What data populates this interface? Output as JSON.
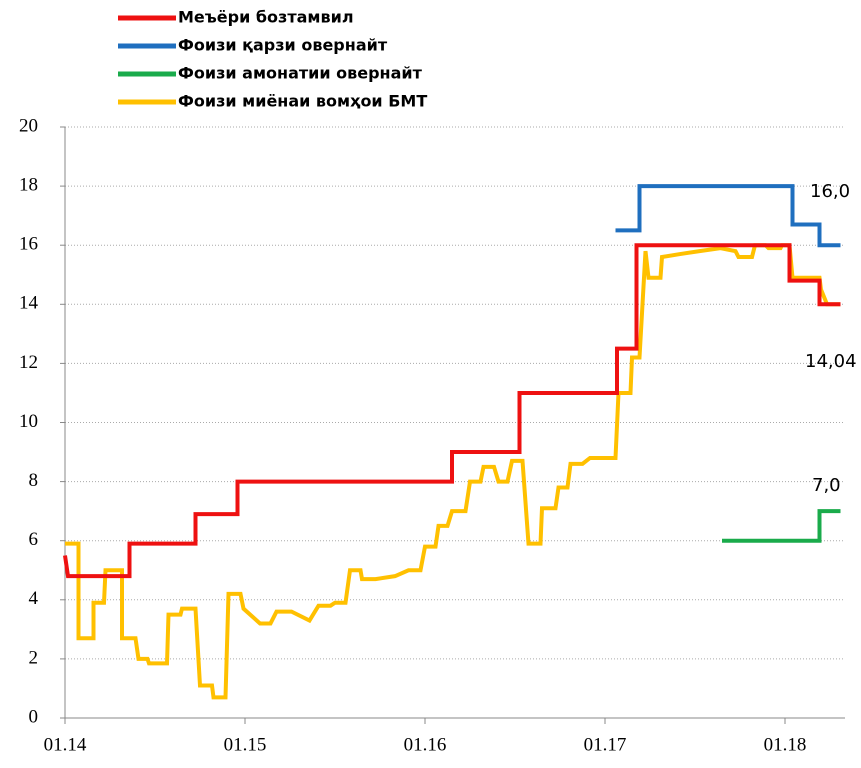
{
  "chart_data": {
    "type": "line",
    "xlim": [
      0,
      52
    ],
    "ylim": [
      0,
      20
    ],
    "xticks": [
      {
        "value": 0,
        "label": "01.14"
      },
      {
        "value": 12,
        "label": "01.15"
      },
      {
        "value": 24,
        "label": "01.16"
      },
      {
        "value": 36,
        "label": "01.17"
      },
      {
        "value": 48,
        "label": "01.18"
      }
    ],
    "yticks": [
      0,
      2,
      4,
      6,
      8,
      10,
      12,
      14,
      16,
      18,
      20
    ],
    "grid": true,
    "legend": "top",
    "annotations": [
      "16,0",
      "14,04",
      "7,0"
    ],
    "series": [
      {
        "name": "Меъёри бозтамвил",
        "color": "#ee1111",
        "x": [
          0,
          0.2,
          4.3,
          4.3,
          8.7,
          8.7,
          11.5,
          11.5,
          25.8,
          25.8,
          30.3,
          30.3,
          36.8,
          36.8,
          38.1,
          38.1,
          48.3,
          48.3,
          50.3,
          50.3,
          51.7
        ],
        "values": [
          5.5,
          4.8,
          4.8,
          5.9,
          5.9,
          6.9,
          6.9,
          8,
          8,
          9,
          9,
          11,
          11,
          12.5,
          12.5,
          16,
          16,
          14.8,
          14.8,
          14,
          14
        ]
      },
      {
        "name": "Фоизи қарзи овернайт",
        "color": "#1f6fbf",
        "x": [
          36.7,
          38.3,
          38.3,
          48.5,
          48.5,
          50.3,
          50.3,
          51.7
        ],
        "values": [
          16.5,
          16.5,
          18,
          18,
          16.7,
          16.7,
          16,
          16
        ]
      },
      {
        "name": "Фоизи амонатии овернайт",
        "color": "#1aab4b",
        "x": [
          43.8,
          50.3,
          50.3,
          51.7
        ],
        "values": [
          6,
          6,
          7,
          7
        ]
      },
      {
        "name": "Фоизи миёнаи вомҳои БМТ",
        "color": "#ffc000",
        "x": [
          0,
          0.9,
          0.9,
          1.9,
          1.9,
          2.6,
          2.7,
          3.8,
          3.8,
          4.7,
          4.9,
          5.5,
          5.6,
          6.8,
          6.9,
          7.7,
          7.8,
          8.7,
          9.0,
          9.8,
          9.9,
          10.7,
          10.9,
          11.7,
          11.9,
          13.0,
          13.7,
          14.1,
          15.1,
          16.3,
          16.9,
          17.7,
          18.0,
          18.7,
          19.0,
          19.7,
          19.8,
          20.7,
          22.0,
          22.9,
          23.7,
          24.0,
          24.7,
          24.9,
          25.5,
          25.8,
          26.7,
          27.0,
          27.7,
          27.9,
          28.6,
          28.9,
          29.5,
          29.8,
          30.5,
          30.9,
          31.7,
          31.8,
          32.7,
          32.9,
          33.5,
          33.7,
          34.5,
          35.0,
          36.7,
          36.9,
          37.7,
          37.8,
          38.3,
          38.7,
          38.9,
          39.7,
          39.8,
          41.0,
          42.3,
          43.7,
          44.7,
          44.9,
          45.8,
          46.0,
          46.7,
          46.9,
          47.7,
          47.8,
          48.3,
          48.5,
          50.3,
          50.4,
          50.8,
          51.7
        ],
        "values": [
          5.9,
          5.9,
          2.7,
          2.7,
          3.9,
          3.9,
          5.0,
          5.0,
          2.7,
          2.7,
          2.0,
          2.0,
          1.85,
          1.85,
          3.5,
          3.5,
          3.7,
          3.7,
          1.1,
          1.1,
          0.7,
          0.7,
          4.2,
          4.2,
          3.7,
          3.2,
          3.2,
          3.6,
          3.6,
          3.3,
          3.8,
          3.8,
          3.9,
          3.9,
          5.0,
          5.0,
          4.7,
          4.7,
          4.8,
          5.0,
          5.0,
          5.8,
          5.8,
          6.5,
          6.5,
          7.0,
          7.0,
          8.0,
          8.0,
          8.5,
          8.5,
          8.0,
          8.0,
          8.7,
          8.7,
          5.9,
          5.9,
          7.1,
          7.1,
          7.8,
          7.8,
          8.6,
          8.6,
          8.8,
          8.8,
          11.0,
          11.0,
          12.2,
          12.2,
          15.8,
          14.9,
          14.9,
          15.6,
          15.7,
          15.8,
          15.9,
          15.8,
          15.6,
          15.6,
          16.0,
          16.0,
          15.9,
          15.9,
          16.0,
          16.0,
          14.9,
          14.9,
          14.5,
          14.0,
          14.0
        ]
      }
    ]
  }
}
